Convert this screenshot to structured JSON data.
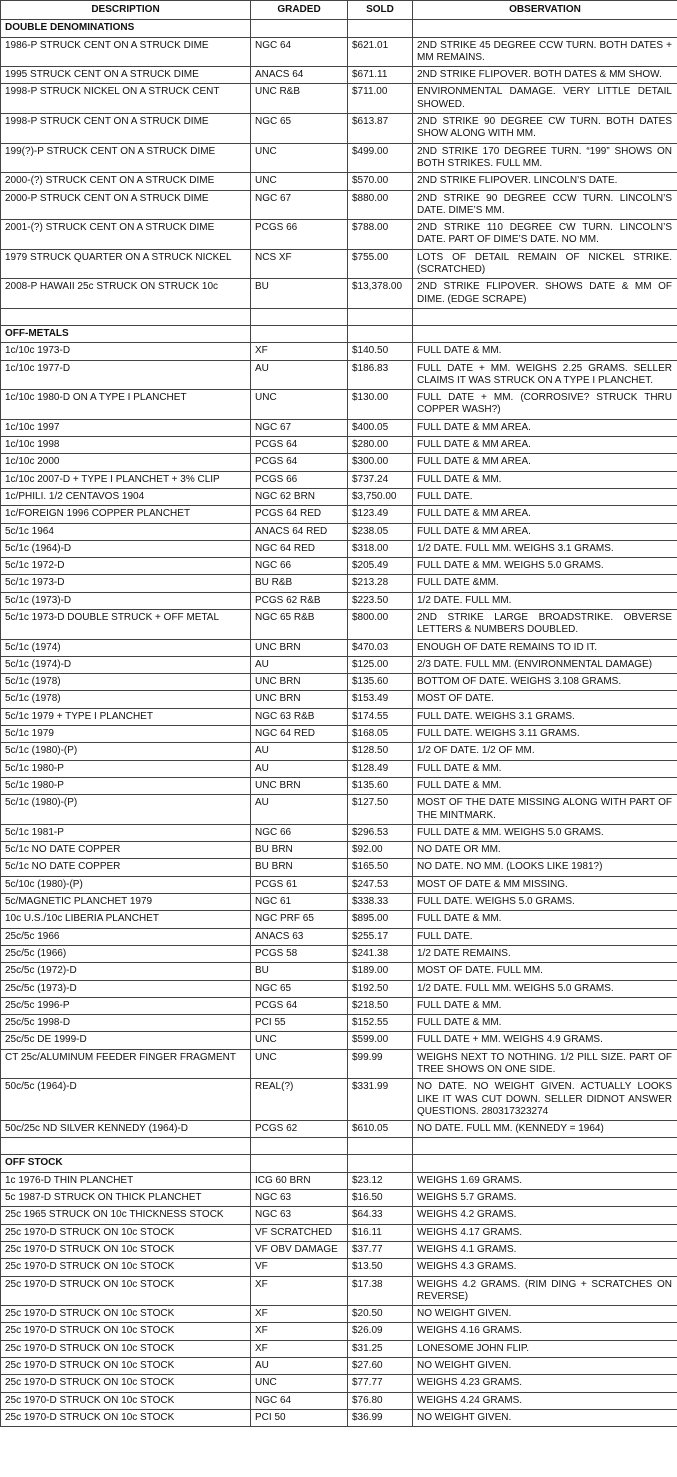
{
  "headers": [
    "DESCRIPTION",
    "GRADED",
    "SOLD",
    "OBSERVATION"
  ],
  "sections": [
    {
      "title": "DOUBLE DENOMINATIONS",
      "rows": [
        [
          "1986-P STRUCK CENT ON A STRUCK DIME",
          "NGC 64",
          "$621.01",
          "2ND STRIKE 45 DEGREE CCW TURN. BOTH DATES + MM REMAINS."
        ],
        [
          "1995 STRUCK CENT ON A STRUCK DIME",
          "ANACS 64",
          "$671.11",
          "2ND STRIKE FLIPOVER. BOTH DATES & MM SHOW."
        ],
        [
          "1998-P STRUCK NICKEL ON A STRUCK CENT",
          "UNC  R&B",
          "$711.00",
          "ENVIRONMENTAL DAMAGE. VERY LITTLE DETAIL SHOWED."
        ],
        [
          "1998-P STRUCK CENT ON A STRUCK DIME",
          "NGC 65",
          "$613.87",
          "2ND STRIKE 90 DEGREE CW TURN. BOTH DATES SHOW ALONG WITH  MM."
        ],
        [
          "199(?)-P STRUCK CENT ON A STRUCK DIME",
          "UNC",
          "$499.00",
          "2ND STRIKE 170 DEGREE TURN. “199” SHOWS ON BOTH STRIKES. FULL MM."
        ],
        [
          "2000-(?) STRUCK CENT ON A STRUCK DIME",
          "UNC",
          "$570.00",
          "2ND STRIKE FLIPOVER. LINCOLN’S DATE."
        ],
        [
          "2000-P STRUCK CENT ON A STRUCK DIME",
          "NGC 67",
          "$880.00",
          "2ND STRIKE 90 DEGREE CCW TURN. LINCOLN’S DATE. DIME’S MM."
        ],
        [
          "2001-(?) STRUCK CENT ON A STRUCK DIME",
          "PCGS 66",
          "$788.00",
          "2ND STRIKE 110 DEGREE CW TURN. LINCOLN’S DATE. PART OF DIME’S DATE. NO MM."
        ],
        [
          "1979 STRUCK QUARTER ON A STRUCK NICKEL",
          "NCS XF",
          "$755.00",
          "LOTS OF DETAIL REMAIN OF NICKEL STRIKE. (SCRATCHED)"
        ],
        [
          "2008-P HAWAII 25c STRUCK ON STRUCK 10c",
          "BU",
          "$13,378.00",
          "2ND STRIKE FLIPOVER. SHOWS DATE & MM OF DIME. (EDGE SCRAPE)"
        ]
      ]
    },
    {
      "title": "OFF-METALS",
      "rows": [
        [
          "1c/10c 1973-D",
          "XF",
          "$140.50",
          "FULL DATE & MM."
        ],
        [
          "1c/10c 1977-D",
          "AU",
          "$186.83",
          "FULL DATE + MM. WEIGHS 2.25 GRAMS. SELLER CLAIMS IT WAS STRUCK ON A TYPE I PLANCHET."
        ],
        [
          "1c/10c 1980-D ON A TYPE I PLANCHET",
          "UNC",
          "$130.00",
          "FULL DATE + MM. (CORROSIVE? STRUCK THRU COPPER WASH?)"
        ],
        [
          "1c/10c 1997",
          "NGC 67",
          "$400.05",
          "FULL DATE & MM AREA."
        ],
        [
          "1c/10c 1998",
          "PCGS 64",
          "$280.00",
          "FULL DATE & MM AREA."
        ],
        [
          "1c/10c 2000",
          "PCGS 64",
          "$300.00",
          "FULL DATE & MM AREA."
        ],
        [
          "1c/10c 2007-D + TYPE I PLANCHET + 3% CLIP",
          "PCGS 66",
          "$737.24",
          "FULL DATE & MM."
        ],
        [
          "1c/PHILI. 1/2 CENTAVOS 1904",
          "NGC 62 BRN",
          "$3,750.00",
          "FULL DATE."
        ],
        [
          "1c/FOREIGN 1996 COPPER PLANCHET",
          "PCGS 64 RED",
          "$123.49",
          "FULL DATE & MM AREA."
        ],
        [
          "5c/1c 1964",
          "ANACS 64 RED",
          "$238.05",
          "FULL DATE & MM AREA."
        ],
        [
          "5c/1c (1964)-D",
          "NGC 64 RED",
          "$318.00",
          "1/2 DATE. FULL MM. WEIGHS 3.1 GRAMS."
        ],
        [
          "5c/1c 1972-D",
          "NGC 66",
          "$205.49",
          "FULL DATE & MM. WEIGHS 5.0 GRAMS."
        ],
        [
          "5c/1c 1973-D",
          "BU R&B",
          "$213.28",
          "FULL DATE &MM."
        ],
        [
          "5c/1c (1973)-D",
          "PCGS 62 R&B",
          "$223.50",
          "1/2 DATE. FULL MM."
        ],
        [
          "5c/1c 1973-D DOUBLE STRUCK + OFF METAL",
          "NGC 65 R&B",
          "$800.00",
          "2ND STRIKE LARGE BROADSTRIKE. OBVERSE LETTERS & NUMBERS DOUBLED."
        ],
        [
          "5c/1c (1974)",
          "UNC BRN",
          "$470.03",
          "ENOUGH OF DATE REMAINS TO ID IT."
        ],
        [
          "5c/1c (1974)-D",
          "AU",
          "$125.00",
          "2/3 DATE. FULL MM. (ENVIRONMENTAL DAMAGE)"
        ],
        [
          "5c/1c (1978)",
          "UNC BRN",
          "$135.60",
          "BOTTOM OF DATE. WEIGHS 3.108 GRAMS."
        ],
        [
          "5c/1c (1978)",
          "UNC BRN",
          "$153.49",
          "MOST OF DATE."
        ],
        [
          "5c/1c 1979 + TYPE I PLANCHET",
          "NGC 63 R&B",
          "$174.55",
          "FULL DATE. WEIGHS 3.1 GRAMS."
        ],
        [
          "5c/1c 1979",
          "NGC 64 RED",
          "$168.05",
          "FULL DATE. WEIGHS 3.11 GRAMS."
        ],
        [
          "5c/1c (1980)-(P)",
          "AU",
          "$128.50",
          "1/2 OF DATE. 1/2 OF MM."
        ],
        [
          "5c/1c 1980-P",
          "AU",
          "$128.49",
          "FULL DATE & MM."
        ],
        [
          "5c/1c 1980-P",
          "UNC BRN",
          "$135.60",
          "FULL DATE & MM."
        ],
        [
          "5c/1c (1980)-(P)",
          "AU",
          "$127.50",
          "MOST OF THE DATE MISSING ALONG WITH PART OF THE MINTMARK."
        ],
        [
          "5c/1c 1981-P",
          "NGC 66",
          "$296.53",
          "FULL DATE & MM. WEIGHS 5.0 GRAMS."
        ],
        [
          "5c/1c NO DATE COPPER",
          "BU BRN",
          "$92.00",
          "NO DATE OR MM."
        ],
        [
          "5c/1c NO DATE COPPER",
          "BU BRN",
          "$165.50",
          "NO DATE. NO MM. (LOOKS LIKE 1981?)"
        ],
        [
          "5c/10c (1980)-(P)",
          "PCGS 61",
          "$247.53",
          "MOST OF DATE & MM MISSING."
        ],
        [
          "5c/MAGNETIC PLANCHET 1979",
          "NGC 61",
          "$338.33",
          "FULL DATE. WEIGHS 5.0 GRAMS."
        ],
        [
          "10c U.S./10c LIBERIA PLANCHET",
          "NGC PRF 65",
          "$895.00",
          "FULL DATE & MM."
        ],
        [
          "25c/5c 1966",
          "ANACS 63",
          "$255.17",
          "FULL DATE."
        ],
        [
          "25c/5c (1966)",
          "PCGS 58",
          "$241.38",
          "1/2 DATE REMAINS."
        ],
        [
          "25c/5c (1972)-D",
          "BU",
          "$189.00",
          "MOST OF DATE. FULL MM."
        ],
        [
          "25c/5c (1973)-D",
          "NGC 65",
          "$192.50",
          "1/2 DATE. FULL MM. WEIGHS 5.0 GRAMS."
        ],
        [
          "25c/5c 1996-P",
          "PCGS 64",
          "$218.50",
          "FULL DATE & MM."
        ],
        [
          "25c/5c 1998-D",
          "PCI 55",
          "$152.55",
          "FULL DATE & MM."
        ],
        [
          "25c/5c DE 1999-D",
          "UNC",
          "$599.00",
          "FULL DATE + MM. WEIGHS 4.9 GRAMS."
        ],
        [
          "CT 25c/ALUMINUM FEEDER FINGER FRAGMENT",
          "UNC",
          "$99.99",
          "WEIGHS NEXT TO NOTHING. 1/2 PILL SIZE. PART OF TREE SHOWS ON ONE SIDE."
        ],
        [
          "50c/5c (1964)-D",
          "REAL(?)",
          "$331.99",
          "NO DATE. NO WEIGHT GIVEN. ACTUALLY LOOKS LIKE IT WAS CUT DOWN. SELLER DIDNOT ANSWER QUESTIONS. 280317323274"
        ],
        [
          "50c/25c ND SILVER KENNEDY (1964)-D",
          "PCGS 62",
          "$610.05",
          "NO DATE. FULL MM. (KENNEDY = 1964)"
        ]
      ]
    },
    {
      "title": "OFF STOCK",
      "rows": [
        [
          "1c 1976-D THIN PLANCHET",
          "ICG 60 BRN",
          "$23.12",
          "WEIGHS 1.69 GRAMS."
        ],
        [
          "5c 1987-D STRUCK ON THICK PLANCHET",
          "NGC 63",
          "$16.50",
          "WEIGHS 5.7 GRAMS."
        ],
        [
          "25c 1965 STRUCK ON 10c THICKNESS STOCK",
          "NGC 63",
          "$64.33",
          "WEIGHS 4.2 GRAMS."
        ],
        [
          "25c 1970-D STRUCK ON 10c STOCK",
          "VF SCRATCHED",
          "$16.11",
          "WEIGHS 4.17 GRAMS."
        ],
        [
          "25c 1970-D STRUCK ON 10c STOCK",
          "VF OBV DAMAGE",
          "$37.77",
          "WEIGHS 4.1 GRAMS."
        ],
        [
          "25c 1970-D STRUCK ON 10c STOCK",
          "VF",
          "$13.50",
          "WEIGHS 4.3 GRAMS."
        ],
        [
          "25c 1970-D STRUCK ON 10c STOCK",
          "XF",
          "$17.38",
          "WEIGHS 4.2 GRAMS. (RIM DING + SCRATCHES ON REVERSE)"
        ],
        [
          "25c 1970-D STRUCK ON 10c STOCK",
          "XF",
          "$20.50",
          "NO WEIGHT GIVEN."
        ],
        [
          "25c 1970-D STRUCK ON 10c STOCK",
          "XF",
          "$26.09",
          "WEIGHS 4.16 GRAMS."
        ],
        [
          "25c 1970-D STRUCK ON 10c STOCK",
          "XF",
          "$31.25",
          "LONESOME JOHN FLIP."
        ],
        [
          "25c 1970-D STRUCK ON 10c STOCK",
          "AU",
          "$27.60",
          "NO WEIGHT GIVEN."
        ],
        [
          "25c 1970-D STRUCK ON 10c STOCK",
          "UNC",
          "$77.77",
          "WEIGHS 4.23 GRAMS."
        ],
        [
          "25c 1970-D STRUCK ON 10c STOCK",
          "NGC 64",
          "$76.80",
          "WEIGHS 4.24 GRAMS."
        ],
        [
          "25c 1970-D STRUCK ON 10c STOCK",
          "PCI 50",
          "$36.99",
          "NO WEIGHT GIVEN."
        ]
      ]
    }
  ]
}
